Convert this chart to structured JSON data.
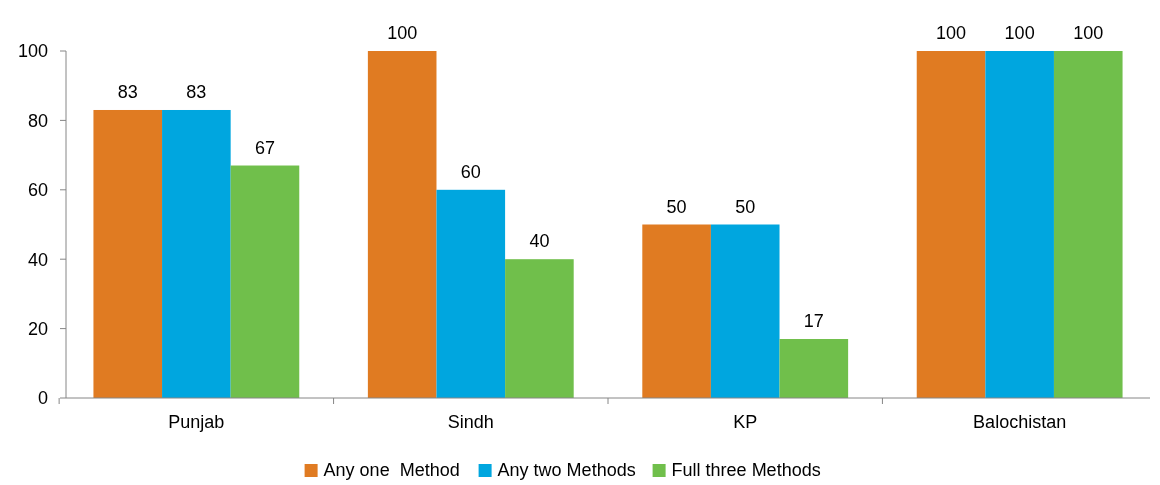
{
  "chart_data": {
    "type": "bar",
    "categories": [
      "Punjab",
      "Sindh",
      "KP",
      "Balochistan"
    ],
    "series": [
      {
        "name": "Any one  Method",
        "color": "#e07b22",
        "values": [
          83,
          100,
          50,
          100
        ]
      },
      {
        "name": "Any two Methods",
        "color": "#00a6df",
        "values": [
          83,
          60,
          50,
          100
        ]
      },
      {
        "name": "Full three Methods",
        "color": "#70bf4b",
        "values": [
          67,
          40,
          17,
          100
        ]
      }
    ],
    "ylim": [
      0,
      100
    ],
    "yticks": [
      0,
      20,
      40,
      60,
      80,
      100
    ],
    "data_labels": true,
    "legend": "bottom",
    "grid": false
  }
}
